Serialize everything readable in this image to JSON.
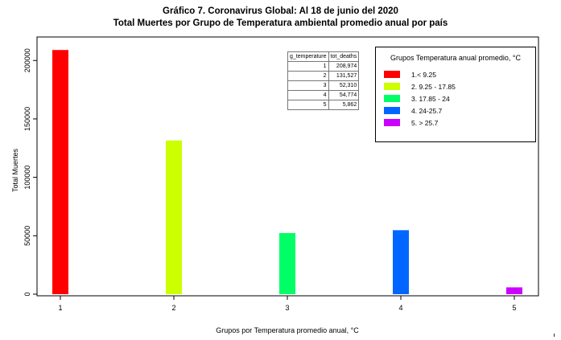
{
  "title_line1": "Gráfico 7. Coronavirus Global: Al 18 de junio del 2020",
  "title_line2": "Total Muertes por Grupo de Temperatura ambiental promedio anual por país",
  "chart_data": {
    "type": "bar",
    "categories": [
      "1",
      "2",
      "3",
      "4",
      "5"
    ],
    "values": [
      208974,
      131527,
      52310,
      54774,
      5862
    ],
    "colors": [
      "#ff0000",
      "#ccff00",
      "#00ff66",
      "#0066ff",
      "#cc00ff"
    ],
    "xlabel": "Grupos por Temperatura promedio anual, °C",
    "ylabel": "Total Muertes",
    "ylim": [
      0,
      216000
    ],
    "yticks": [
      0,
      50000,
      100000,
      150000,
      200000
    ],
    "grid": false,
    "legend_position": "top-right"
  },
  "table": {
    "headers": [
      "g_temperature",
      "tot_deaths"
    ],
    "rows": [
      [
        "1",
        "208,974"
      ],
      [
        "2",
        "131,527"
      ],
      [
        "3",
        "52,310"
      ],
      [
        "4",
        "54,774"
      ],
      [
        "5",
        "5,862"
      ]
    ]
  },
  "legend": {
    "title": "Grupos Temperatura anual promedio, °C",
    "items": [
      {
        "label": "1.< 9.25",
        "color": "#ff0000"
      },
      {
        "label": "2. 9.25 - 17.85",
        "color": "#ccff00"
      },
      {
        "label": "3. 17.85 - 24",
        "color": "#00ff66"
      },
      {
        "label": "4. 24-25.7",
        "color": "#0066ff"
      },
      {
        "label": "5. > 25.7",
        "color": "#cc00ff"
      }
    ]
  }
}
